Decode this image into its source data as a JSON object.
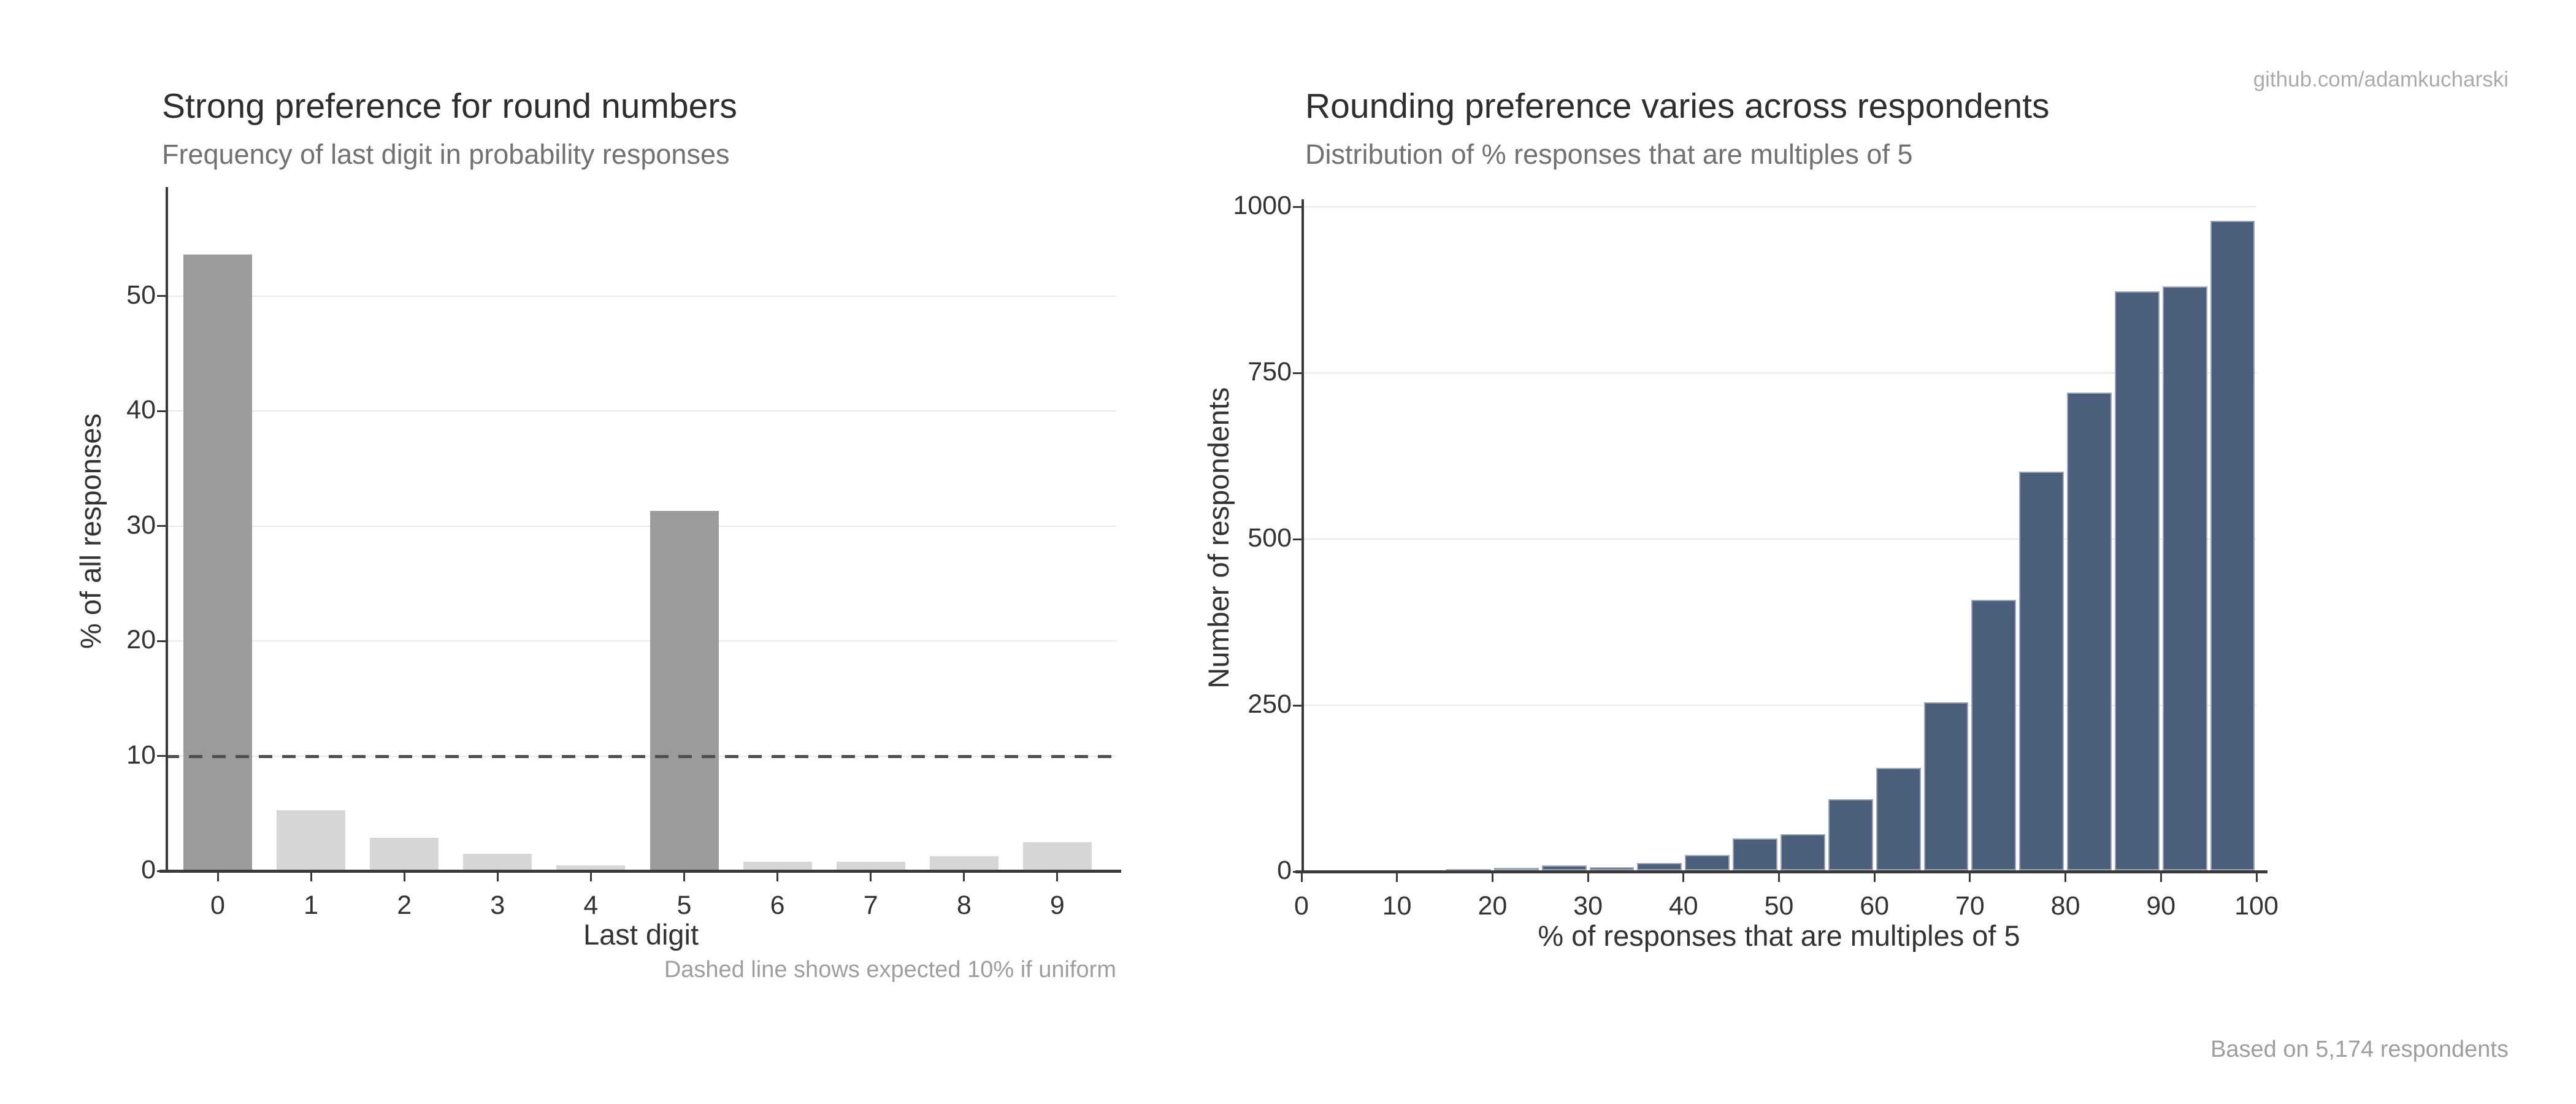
{
  "annotations": {
    "credit": "github.com/adamkucharski",
    "sample_note": "Based on 5,174 respondents"
  },
  "style": {
    "axis_color": "#3a3a3a",
    "grid_color": "#e9e9e9",
    "title_color": "#2e2e2e",
    "subtitle_color": "#717171",
    "caption_color": "#9e9e9e",
    "credit_color": "#ababab"
  },
  "chart_data": [
    {
      "type": "bar",
      "title": "Strong preference for round numbers",
      "subtitle": "Frequency of last digit in probability responses",
      "xlabel": "Last digit",
      "ylabel": "% of all responses",
      "caption": "Dashed line shows expected 10% if uniform",
      "categories": [
        "0",
        "1",
        "2",
        "3",
        "4",
        "5",
        "6",
        "7",
        "8",
        "9"
      ],
      "values": [
        53.5,
        5.2,
        2.8,
        1.4,
        0.4,
        31.2,
        0.7,
        0.7,
        1.2,
        2.4
      ],
      "highlight_categories": [
        "0",
        "5"
      ],
      "bar_color_default": "#d6d6d6",
      "bar_color_highlight": "#9b9b9b",
      "reference_line": {
        "value": 10,
        "style": "dashed",
        "color": "#4e4e4e",
        "label": "expected 10% if uniform"
      },
      "ylim": [
        0,
        59.5
      ],
      "yticks": [
        0,
        10,
        20,
        30,
        40,
        50
      ],
      "grid": "horizontal",
      "legend": "none"
    },
    {
      "type": "bar",
      "title": "Rounding preference varies across respondents",
      "subtitle": "Distribution of % responses that are multiples of 5",
      "xlabel": "% of responses that are multiples of 5",
      "ylabel": "Number of respondents",
      "bin_width": 5,
      "bin_starts": [
        15,
        20,
        25,
        30,
        35,
        40,
        45,
        50,
        55,
        60,
        65,
        70,
        75,
        80,
        85,
        90,
        95
      ],
      "values": [
        2,
        4,
        7,
        5,
        11,
        23,
        48,
        54,
        107,
        154,
        253,
        407,
        600,
        719,
        871,
        878,
        977
      ],
      "bar_color": "#4b5e7c",
      "bar_edge_color": "rgba(255,255,255,0.45)",
      "xlim": [
        0,
        100
      ],
      "xticks": [
        0,
        10,
        20,
        30,
        40,
        50,
        60,
        70,
        80,
        90,
        100
      ],
      "ylim": [
        0,
        1010
      ],
      "yticks": [
        0,
        250,
        500,
        750,
        1000
      ],
      "grid": "horizontal",
      "legend": "none"
    }
  ]
}
